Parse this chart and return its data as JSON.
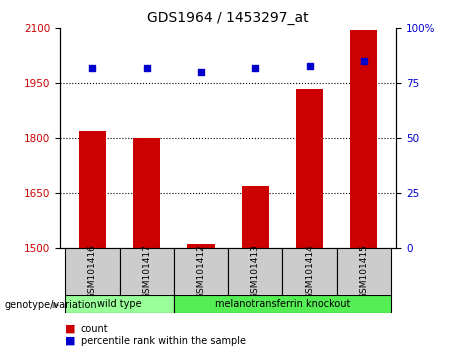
{
  "title": "GDS1964 / 1453297_at",
  "samples": [
    "GSM101416",
    "GSM101417",
    "GSM101412",
    "GSM101413",
    "GSM101414",
    "GSM101415"
  ],
  "counts": [
    1820,
    1800,
    1510,
    1670,
    1935,
    2095
  ],
  "percentiles": [
    82,
    82,
    80,
    82,
    83,
    85
  ],
  "ylim_left": [
    1500,
    2100
  ],
  "ylim_right": [
    0,
    100
  ],
  "yticks_left": [
    1500,
    1650,
    1800,
    1950,
    2100
  ],
  "yticks_right": [
    0,
    25,
    50,
    75,
    100
  ],
  "hlines": [
    1650,
    1800,
    1950
  ],
  "bar_color": "#cc0000",
  "dot_color": "#0000cc",
  "bar_width": 0.5,
  "groups": [
    {
      "label": "wild type",
      "indices": [
        0,
        1
      ],
      "color": "#99ff99"
    },
    {
      "label": "melanotransferrin knockout",
      "indices": [
        2,
        3,
        4,
        5
      ],
      "color": "#55ee55"
    }
  ],
  "xlabel_genotype": "genotype/variation",
  "legend_count_label": "count",
  "legend_percentile_label": "percentile rank within the sample",
  "tick_label_color_left": "#cc0000",
  "tick_label_color_right": "#0000cc",
  "bg_color": "#ffffff",
  "label_area_color": "#cccccc"
}
